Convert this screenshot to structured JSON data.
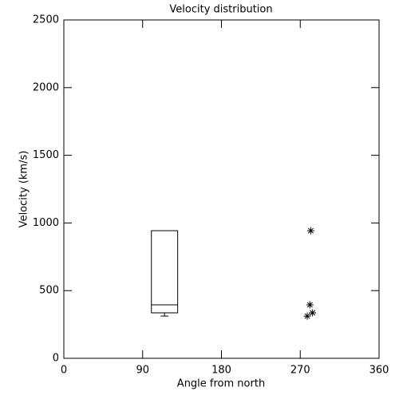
{
  "chart_data": {
    "type": "box",
    "title": "Velocity distribution",
    "xlabel": "Angle from north",
    "ylabel": "Velocity (km/s)",
    "xlim": [
      0,
      360
    ],
    "xticks": [
      0,
      90,
      180,
      270,
      360
    ],
    "ylim": [
      0,
      2500
    ],
    "yticks": [
      0,
      500,
      1000,
      1500,
      2000,
      2500
    ],
    "boxes": [
      {
        "x0": 100,
        "x1": 130,
        "min": 312,
        "q1": 336,
        "median": 395,
        "q3": 943,
        "max": 943
      }
    ],
    "points": {
      "x": [
        282,
        281,
        278,
        284
      ],
      "y": [
        943,
        395,
        312,
        336
      ]
    },
    "color": "#000000"
  }
}
